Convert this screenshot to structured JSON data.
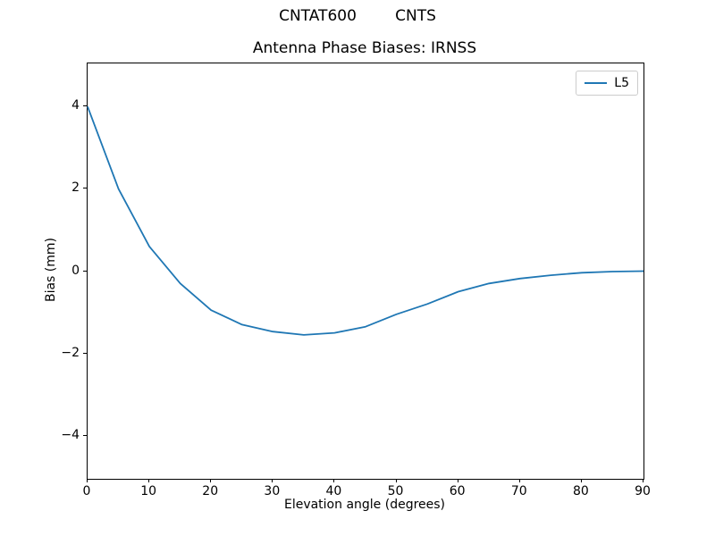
{
  "figure": {
    "suptitle": "CNTAT600        CNTS",
    "background_color": "#ffffff",
    "text_color": "#000000"
  },
  "chart_data": {
    "type": "line",
    "title": "Antenna Phase Biases: IRNSS",
    "xlabel": "Elevation angle (degrees)",
    "ylabel": "Bias (mm)",
    "xlim": [
      0,
      90
    ],
    "ylim": [
      -5.05,
      5.05
    ],
    "xticks": [
      0,
      10,
      20,
      30,
      40,
      50,
      60,
      70,
      80,
      90
    ],
    "yticks": [
      -4,
      -2,
      0,
      2,
      4
    ],
    "grid": false,
    "legend_position": "upper right",
    "legend_border_color": "#cccccc",
    "series": [
      {
        "name": "L5",
        "color": "#1f77b4",
        "x": [
          0,
          5,
          10,
          15,
          20,
          25,
          30,
          35,
          40,
          45,
          50,
          55,
          60,
          65,
          70,
          75,
          80,
          85,
          90
        ],
        "y": [
          4.0,
          2.0,
          0.6,
          -0.3,
          -0.95,
          -1.3,
          -1.47,
          -1.55,
          -1.5,
          -1.35,
          -1.05,
          -0.8,
          -0.5,
          -0.3,
          -0.18,
          -0.1,
          -0.04,
          -0.01,
          0.0
        ]
      }
    ]
  }
}
